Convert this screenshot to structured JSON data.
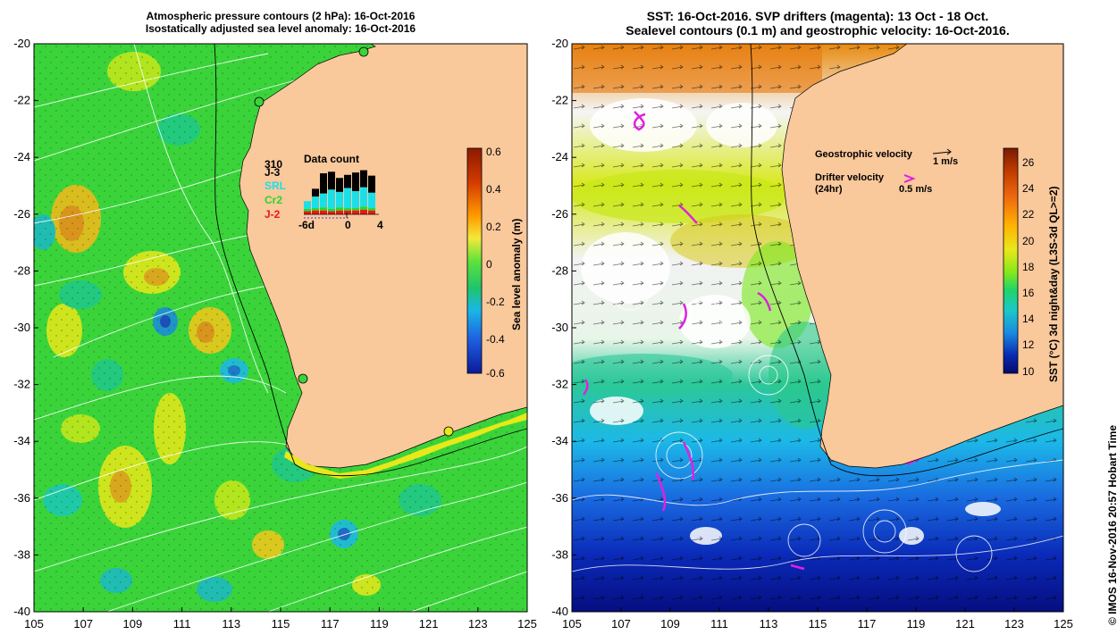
{
  "left_panel": {
    "title_line1": "Atmospheric pressure contours (2 hPa): 16-Oct-2016",
    "title_line2": "Isostatically adjusted sea level anomaly: 16-Oct-2016",
    "colorbar": {
      "label": "Sea level anomaly (m)",
      "ticks": [
        "0.6",
        "0.4",
        "0.2",
        "0",
        "-0.2",
        "-0.4",
        "-0.6"
      ],
      "gradient": [
        "#8b1a00",
        "#d23a00",
        "#ff9a00",
        "#f5e83a",
        "#5fe33a",
        "#1fc46a",
        "#19b7e8",
        "#1e5fe0",
        "#0a1a9a"
      ]
    },
    "data_count": {
      "title": "Data count",
      "max_label": "310",
      "satellites": [
        "J-3",
        "SRL",
        "Cr2",
        "J-2"
      ],
      "satellite_colors": [
        "#000000",
        "#19e0e8",
        "#27d927",
        "#e81818"
      ],
      "x_ticks": [
        "-6d",
        "0",
        "4"
      ],
      "bars": [
        {
          "J-2": 8,
          "Cr2": 6,
          "SRL": 20,
          "J-3": 0
        },
        {
          "J-2": 10,
          "Cr2": 6,
          "SRL": 30,
          "J-3": 20
        },
        {
          "J-2": 10,
          "Cr2": 8,
          "SRL": 36,
          "J-3": 52
        },
        {
          "J-2": 8,
          "Cr2": 6,
          "SRL": 50,
          "J-3": 46
        },
        {
          "J-2": 10,
          "Cr2": 8,
          "SRL": 40,
          "J-3": 36
        },
        {
          "J-2": 10,
          "Cr2": 6,
          "SRL": 52,
          "J-3": 34
        },
        {
          "J-2": 10,
          "Cr2": 6,
          "SRL": 44,
          "J-3": 48
        },
        {
          "J-2": 12,
          "Cr2": 8,
          "SRL": 50,
          "J-3": 44
        },
        {
          "J-2": 10,
          "Cr2": 6,
          "SRL": 40,
          "J-3": 44
        }
      ]
    }
  },
  "right_panel": {
    "title_line1": "SST: 16-Oct-2016. SVP drifters (magenta): 13 Oct - 18 Oct.",
    "title_line2": "Sealevel contours (0.1 m) and geostrophic velocity: 16-Oct-2016.",
    "legend": {
      "geo_label": "Geostrophic velocity",
      "geo_scale": "1 m/s",
      "drifter_label_1": "Drifter velocity",
      "drifter_label_2": "(24hr)",
      "drifter_scale": "0.5 m/s"
    },
    "colorbar": {
      "label": "SST (°C) 3d night&day (L3S-3d QL>=2)",
      "ticks": [
        "26",
        "24",
        "22",
        "20",
        "18",
        "16",
        "14",
        "12",
        "10"
      ],
      "gradient": [
        "#7a1a00",
        "#c03a00",
        "#f06a10",
        "#ffb000",
        "#e8e81a",
        "#88e81a",
        "#1fd46a",
        "#1cc8c8",
        "#1a8ae0",
        "#0a2ab0",
        "#040a6a"
      ]
    }
  },
  "axes": {
    "lat_ticks": [
      "-20",
      "-22",
      "-24",
      "-26",
      "-28",
      "-30",
      "-32",
      "-34",
      "-36",
      "-38",
      "-40"
    ],
    "lon_ticks": [
      "105",
      "107",
      "109",
      "111",
      "113",
      "115",
      "117",
      "119",
      "121",
      "123",
      "125"
    ]
  },
  "stamp": "© IMOS 16-Nov-2016 20:57 Hobart Time",
  "colors": {
    "land": "#f9c89b",
    "slaBackground": "#3ad43a",
    "sstWarm": "#c8e81a"
  }
}
